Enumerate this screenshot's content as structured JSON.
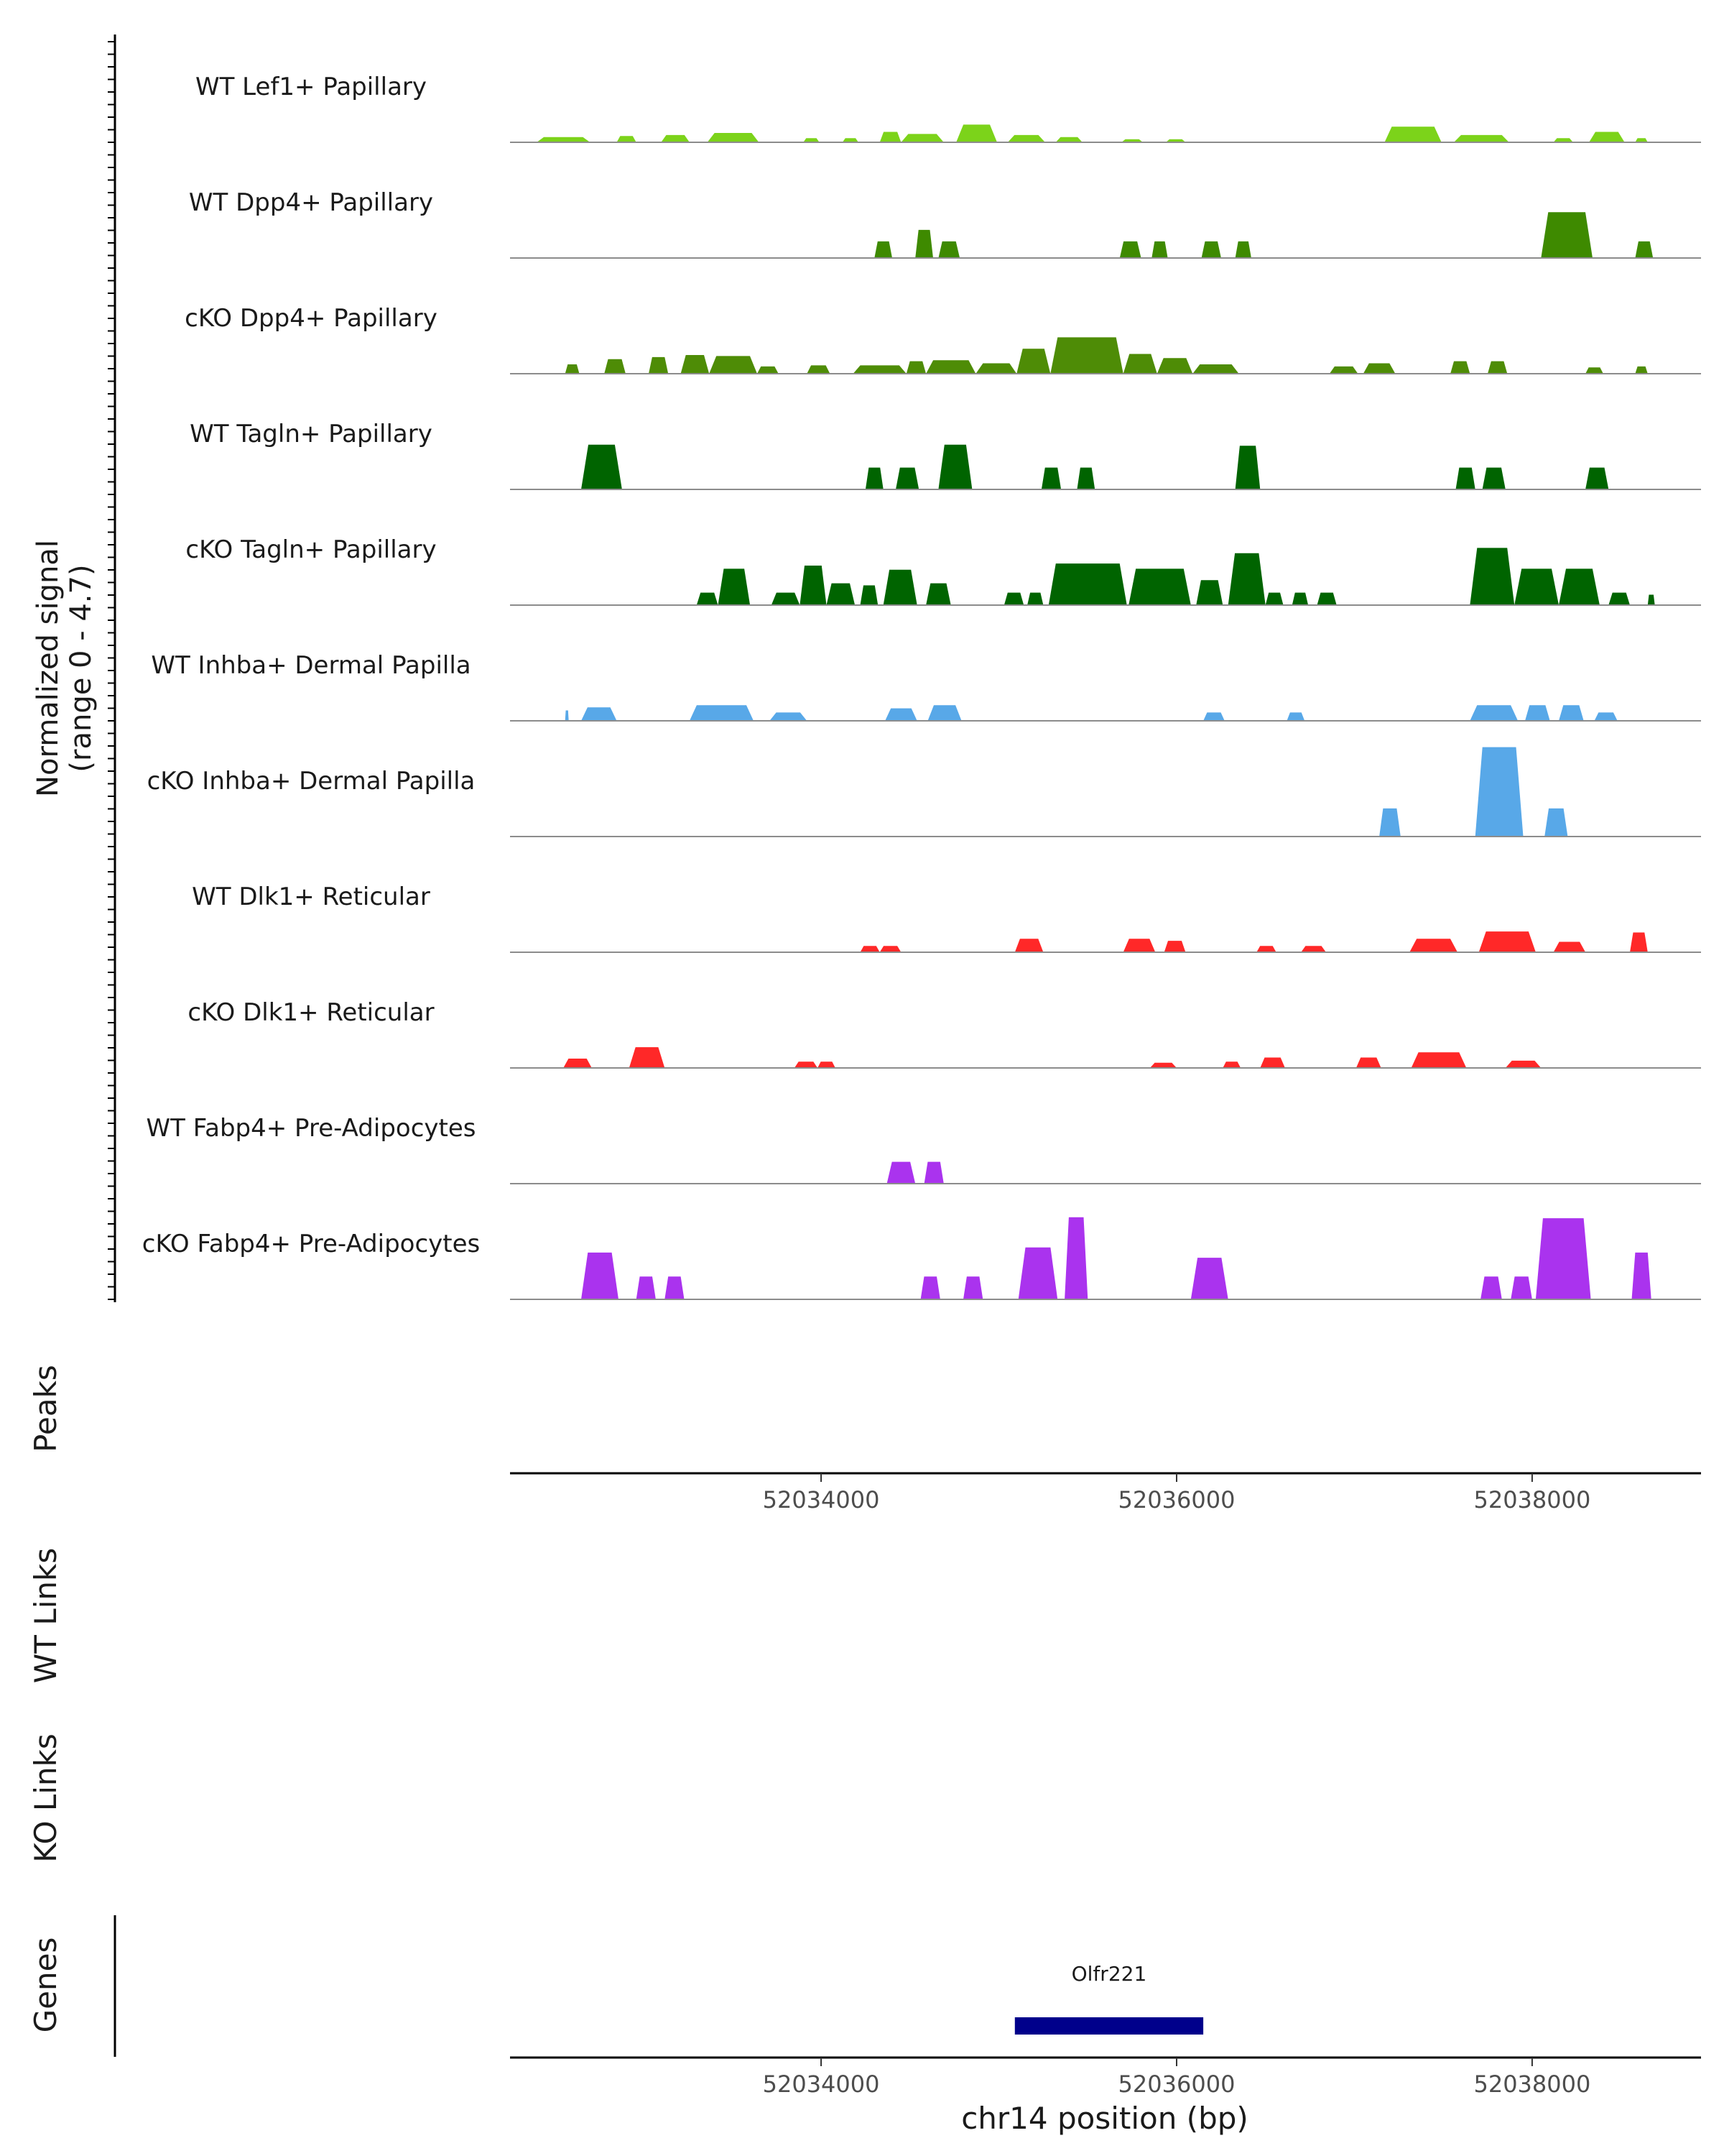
{
  "chart_data": {
    "type": "area",
    "title": "",
    "ylabel_line1": "Normalized signal",
    "ylabel_line2": "(range 0 - 4.7)",
    "ylim": [
      0,
      4.7
    ],
    "xlabel": "chr14 position (bp)",
    "xlim": [
      52032250,
      52038950
    ],
    "xticks": [
      52034000,
      52036000,
      52038000
    ],
    "xtick_labels": [
      "52034000",
      "52036000",
      "52038000"
    ],
    "tracks": [
      {
        "name": "WT Lef1+ Papillary",
        "color": "#7CD31A",
        "peaks": [
          [
            52032400,
            52032700,
            0.25
          ],
          [
            52032850,
            52032960,
            0.3
          ],
          [
            52033100,
            52033260,
            0.35
          ],
          [
            52033360,
            52033650,
            0.45
          ],
          [
            52033900,
            52033990,
            0.2
          ],
          [
            52034120,
            52034210,
            0.2
          ],
          [
            52034330,
            52034450,
            0.5
          ],
          [
            52034450,
            52034690,
            0.4
          ],
          [
            52034760,
            52034990,
            0.85
          ],
          [
            52035050,
            52035260,
            0.35
          ],
          [
            52035320,
            52035470,
            0.25
          ],
          [
            52035690,
            52035810,
            0.15
          ],
          [
            52035940,
            52036050,
            0.15
          ],
          [
            52037170,
            52037490,
            0.75
          ],
          [
            52037560,
            52037870,
            0.35
          ],
          [
            52038120,
            52038230,
            0.2
          ],
          [
            52038320,
            52038520,
            0.5
          ],
          [
            52038580,
            52038650,
            0.2
          ]
        ]
      },
      {
        "name": "WT Dpp4+ Papillary",
        "color": "#3E8A00",
        "peaks": [
          [
            52034300,
            52034400,
            0.8
          ],
          [
            52034530,
            52034630,
            1.35
          ],
          [
            52034660,
            52034780,
            0.8
          ],
          [
            52035680,
            52035800,
            0.8
          ],
          [
            52035860,
            52035950,
            0.8
          ],
          [
            52036140,
            52036250,
            0.8
          ],
          [
            52036330,
            52036420,
            0.8
          ],
          [
            52038050,
            52038340,
            2.2
          ],
          [
            52038580,
            52038680,
            0.8
          ]
        ]
      },
      {
        "name": "cKO Dpp4+ Papillary",
        "color": "#4E8C06",
        "peaks": [
          [
            52032560,
            52032640,
            0.45
          ],
          [
            52032780,
            52032900,
            0.7
          ],
          [
            52033030,
            52033140,
            0.8
          ],
          [
            52033210,
            52033370,
            0.9
          ],
          [
            52033370,
            52033640,
            0.85
          ],
          [
            52033640,
            52033760,
            0.35
          ],
          [
            52033920,
            52034050,
            0.4
          ],
          [
            52034180,
            52034480,
            0.4
          ],
          [
            52034480,
            52034590,
            0.6
          ],
          [
            52034590,
            52034870,
            0.65
          ],
          [
            52034870,
            52035100,
            0.5
          ],
          [
            52035100,
            52035290,
            1.2
          ],
          [
            52035290,
            52035700,
            1.75
          ],
          [
            52035700,
            52035890,
            0.95
          ],
          [
            52035890,
            52036090,
            0.75
          ],
          [
            52036090,
            52036350,
            0.45
          ],
          [
            52036860,
            52037020,
            0.35
          ],
          [
            52037050,
            52037230,
            0.5
          ],
          [
            52037540,
            52037650,
            0.6
          ],
          [
            52037750,
            52037860,
            0.6
          ],
          [
            52038300,
            52038400,
            0.3
          ],
          [
            52038580,
            52038650,
            0.35
          ]
        ]
      },
      {
        "name": "WT Tagln+ Papillary",
        "color": "#006400",
        "peaks": [
          [
            52032650,
            52032880,
            2.15
          ],
          [
            52034250,
            52034350,
            1.05
          ],
          [
            52034420,
            52034550,
            1.05
          ],
          [
            52034660,
            52034850,
            2.15
          ],
          [
            52035240,
            52035350,
            1.05
          ],
          [
            52035440,
            52035540,
            1.05
          ],
          [
            52036330,
            52036470,
            2.1
          ],
          [
            52037570,
            52037680,
            1.05
          ],
          [
            52037720,
            52037850,
            1.05
          ],
          [
            52038300,
            52038430,
            1.05
          ]
        ]
      },
      {
        "name": "cKO Tagln+ Papillary",
        "color": "#006400",
        "peaks": [
          [
            52033300,
            52033420,
            0.6
          ],
          [
            52033420,
            52033600,
            1.75
          ],
          [
            52033720,
            52033880,
            0.6
          ],
          [
            52033880,
            52034030,
            1.9
          ],
          [
            52034030,
            52034190,
            1.05
          ],
          [
            52034220,
            52034320,
            0.95
          ],
          [
            52034350,
            52034540,
            1.7
          ],
          [
            52034590,
            52034730,
            1.05
          ],
          [
            52035030,
            52035140,
            0.6
          ],
          [
            52035160,
            52035250,
            0.6
          ],
          [
            52035280,
            52035720,
            2.0
          ],
          [
            52035730,
            52036080,
            1.75
          ],
          [
            52036110,
            52036260,
            1.2
          ],
          [
            52036290,
            52036500,
            2.5
          ],
          [
            52036500,
            52036600,
            0.6
          ],
          [
            52036650,
            52036740,
            0.6
          ],
          [
            52036790,
            52036900,
            0.6
          ],
          [
            52037650,
            52037900,
            2.75
          ],
          [
            52037900,
            52038150,
            1.75
          ],
          [
            52038150,
            52038380,
            1.75
          ],
          [
            52038430,
            52038550,
            0.6
          ],
          [
            52038650,
            52038690,
            0.5
          ]
        ]
      },
      {
        "name": "WT Inhba+ Dermal Papilla",
        "color": "#58A8E8",
        "peaks": [
          [
            52032560,
            52032580,
            0.5
          ],
          [
            52032650,
            52032850,
            0.65
          ],
          [
            52033260,
            52033620,
            0.75
          ],
          [
            52033710,
            52033920,
            0.4
          ],
          [
            52034360,
            52034540,
            0.6
          ],
          [
            52034600,
            52034790,
            0.75
          ],
          [
            52036150,
            52036270,
            0.4
          ],
          [
            52036620,
            52036720,
            0.4
          ],
          [
            52037650,
            52037920,
            0.75
          ],
          [
            52037960,
            52038100,
            0.75
          ],
          [
            52038150,
            52038290,
            0.75
          ],
          [
            52038350,
            52038480,
            0.4
          ]
        ]
      },
      {
        "name": "cKO Inhba+ Dermal Papilla",
        "color": "#58A8E8",
        "peaks": [
          [
            52037140,
            52037260,
            1.35
          ],
          [
            52037680,
            52037950,
            4.3
          ],
          [
            52038070,
            52038200,
            1.35
          ]
        ]
      },
      {
        "name": "WT Dlk1+ Reticular",
        "color": "#FF2828",
        "peaks": [
          [
            52034220,
            52034330,
            0.3
          ],
          [
            52034330,
            52034450,
            0.3
          ],
          [
            52035090,
            52035250,
            0.65
          ],
          [
            52035700,
            52035880,
            0.65
          ],
          [
            52035930,
            52036050,
            0.55
          ],
          [
            52036450,
            52036560,
            0.3
          ],
          [
            52036700,
            52036840,
            0.3
          ],
          [
            52037310,
            52037580,
            0.65
          ],
          [
            52037700,
            52038020,
            1.0
          ],
          [
            52038120,
            52038300,
            0.5
          ],
          [
            52038550,
            52038650,
            0.95
          ]
        ]
      },
      {
        "name": "cKO Dlk1+ Reticular",
        "color": "#FF2828",
        "peaks": [
          [
            52032550,
            52032710,
            0.45
          ],
          [
            52032920,
            52033120,
            1.0
          ],
          [
            52033850,
            52033980,
            0.3
          ],
          [
            52033980,
            52034080,
            0.3
          ],
          [
            52035850,
            52036000,
            0.25
          ],
          [
            52036260,
            52036360,
            0.3
          ],
          [
            52036470,
            52036610,
            0.5
          ],
          [
            52037010,
            52037150,
            0.5
          ],
          [
            52037320,
            52037630,
            0.75
          ],
          [
            52037850,
            52038050,
            0.35
          ]
        ]
      },
      {
        "name": "WT Fabp4+ Pre-Adipocytes",
        "color": "#AA33EE",
        "peaks": [
          [
            52034370,
            52034530,
            1.05
          ],
          [
            52034580,
            52034690,
            1.05
          ]
        ]
      },
      {
        "name": "cKO Fabp4+ Pre-Adipocytes",
        "color": "#AA33EE",
        "peaks": [
          [
            52032650,
            52032860,
            2.25
          ],
          [
            52032960,
            52033070,
            1.1
          ],
          [
            52033120,
            52033230,
            1.1
          ],
          [
            52034560,
            52034670,
            1.1
          ],
          [
            52034800,
            52034910,
            1.1
          ],
          [
            52035110,
            52035330,
            2.5
          ],
          [
            52035370,
            52035500,
            3.95
          ],
          [
            52036080,
            52036290,
            2.0
          ],
          [
            52037710,
            52037830,
            1.1
          ],
          [
            52037880,
            52038000,
            1.1
          ],
          [
            52038020,
            52038330,
            3.9
          ],
          [
            52038560,
            52038670,
            2.25
          ]
        ]
      }
    ],
    "panels": {
      "peaks_label": "Peaks",
      "wt_links_label": "WT Links",
      "ko_links_label": "KO Links",
      "genes_label": "Genes"
    },
    "genes": [
      {
        "name": "Olfr221",
        "start": 52035090,
        "end": 52036150,
        "color": "#00008B"
      }
    ]
  }
}
